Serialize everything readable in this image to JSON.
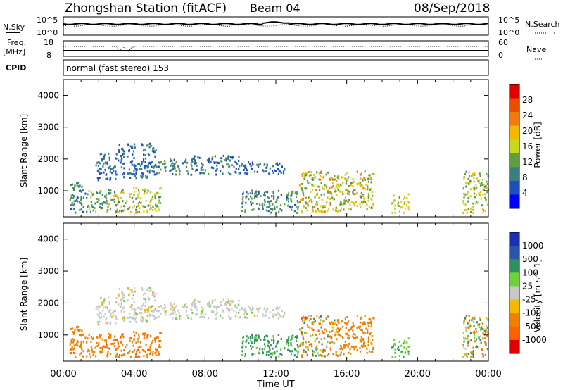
{
  "header": {
    "title": "Zhongshan Station (fitACF)",
    "beam": "Beam 04",
    "date": "08/Sep/2018"
  },
  "params": {
    "nsky_label": "N.Sky",
    "nsky_top": "10^5",
    "nsky_bottom": "10^0",
    "nsearch_label": "N.Search",
    "nsearch_top": "10^5",
    "nsearch_bottom": "10^0",
    "freq_label": "Freq.",
    "freq_unit": "[MHz]",
    "freq_top": "18",
    "freq_bottom": "8",
    "nave_label": "Nave",
    "nave_top": "60",
    "nave_bottom": "0",
    "cpid_label": "CPID",
    "cpid_text": "normal (fast stereo) 153"
  },
  "colors": {
    "power_scale": [
      "#0000ff",
      "#1f4fbf",
      "#3a7f7f",
      "#5f9f3f",
      "#c8d820",
      "#f4b800",
      "#f07b10",
      "#e84d00",
      "#e00000"
    ],
    "velocity_scale": [
      "#e00000",
      "#ff6000",
      "#f08000",
      "#f4b800",
      "#c8c8c8",
      "#6fd23c",
      "#2f8f5f",
      "#2b56a8",
      "#1c2fb3"
    ]
  },
  "chart_data": [
    {
      "type": "heatmap",
      "name": "power",
      "title": "",
      "xlabel": "Time UT",
      "ylabel": "Slant Range [km]",
      "x_range": [
        "00:00",
        "24:00"
      ],
      "y_range_km": [
        180,
        4500
      ],
      "x_ticks": [
        "00:00",
        "04:00",
        "08:00",
        "12:00",
        "16:00",
        "20:00",
        "00:00"
      ],
      "y_ticks": [
        "1000",
        "2000",
        "3000",
        "4000"
      ],
      "colorbar_label": "Power [dB]",
      "colorbar_ticks": [
        "4",
        "8",
        "12",
        "16",
        "20",
        "24",
        "28"
      ],
      "colorbar_range": [
        0,
        32
      ]
    },
    {
      "type": "heatmap",
      "name": "velocity",
      "title": "",
      "xlabel": "Time UT",
      "ylabel": "Slant Range [km]",
      "x_range": [
        "00:00",
        "24:00"
      ],
      "y_range_km": [
        180,
        4500
      ],
      "x_ticks": [
        "00:00",
        "04:00",
        "08:00",
        "12:00",
        "16:00",
        "20:00",
        "00:00"
      ],
      "y_ticks": [
        "1000",
        "2000",
        "3000",
        "4000"
      ],
      "colorbar_label": "Velocity [m s^-1]",
      "colorbar_ticks": [
        "1000",
        "500",
        "100",
        "25",
        "-25",
        "-100",
        "-500",
        "-1000"
      ]
    }
  ],
  "scatter_regions": [
    {
      "t0": 0.3,
      "t1": 1.3,
      "r0": 300,
      "r1": 1300,
      "p": [
        6,
        12
      ],
      "v": [
        -600,
        -150
      ]
    },
    {
      "t0": 1.3,
      "t1": 2.4,
      "r0": 300,
      "r1": 1000,
      "p": [
        8,
        16
      ],
      "v": [
        -500,
        -100
      ]
    },
    {
      "t0": 2.4,
      "t1": 5.5,
      "r0": 300,
      "r1": 1100,
      "p": [
        8,
        20
      ],
      "v": [
        -600,
        -120
      ]
    },
    {
      "t0": 1.8,
      "t1": 3.0,
      "r0": 1300,
      "r1": 2200,
      "p": [
        4,
        10
      ],
      "v": [
        -30,
        30
      ]
    },
    {
      "t0": 3.0,
      "t1": 5.2,
      "r0": 1400,
      "r1": 2500,
      "p": [
        4,
        10
      ],
      "v": [
        -30,
        30
      ]
    },
    {
      "t0": 5.2,
      "t1": 7.0,
      "r0": 1500,
      "r1": 2000,
      "p": [
        6,
        14
      ],
      "v": [
        -30,
        30
      ]
    },
    {
      "t0": 7.0,
      "t1": 10.0,
      "r0": 1500,
      "r1": 2100,
      "p": [
        4,
        12
      ],
      "v": [
        -30,
        30
      ]
    },
    {
      "t0": 10.0,
      "t1": 12.5,
      "r0": 1500,
      "r1": 1900,
      "p": [
        4,
        8
      ],
      "v": [
        -30,
        30
      ]
    },
    {
      "t0": 10.0,
      "t1": 13.3,
      "r0": 300,
      "r1": 1000,
      "p": [
        6,
        14
      ],
      "v": [
        30,
        300
      ]
    },
    {
      "t0": 13.3,
      "t1": 15.6,
      "r0": 300,
      "r1": 1600,
      "p": [
        10,
        24
      ],
      "v": [
        -600,
        200
      ]
    },
    {
      "t0": 15.6,
      "t1": 17.5,
      "r0": 400,
      "r1": 1600,
      "p": [
        10,
        22
      ],
      "v": [
        -500,
        -80
      ]
    },
    {
      "t0": 18.5,
      "t1": 19.5,
      "r0": 300,
      "r1": 900,
      "p": [
        12,
        22
      ],
      "v": [
        40,
        150
      ]
    },
    {
      "t0": 22.5,
      "t1": 24.0,
      "r0": 300,
      "r1": 1600,
      "p": [
        10,
        20
      ],
      "v": [
        -400,
        300
      ]
    }
  ]
}
